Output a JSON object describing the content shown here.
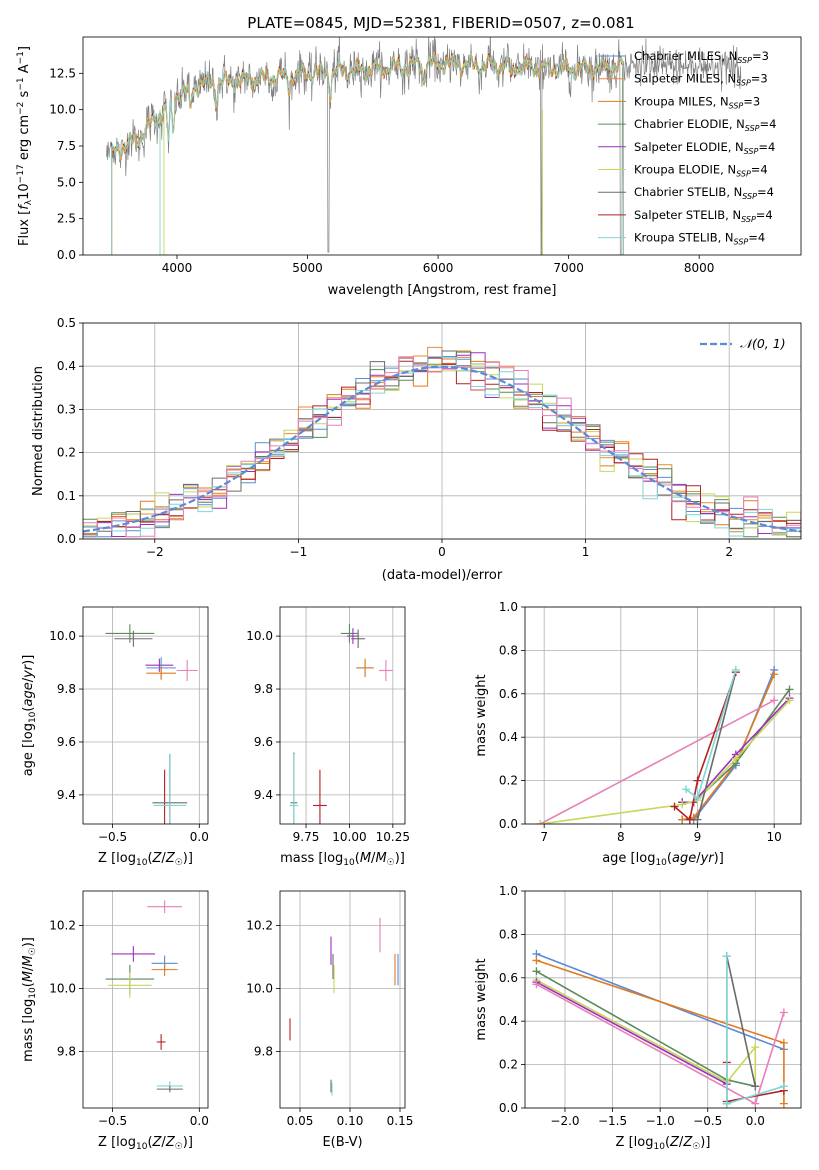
{
  "figure": {
    "title": "PLATE=0845, MJD=52381, FIBERID=0507, z=0.081"
  },
  "colors": {
    "Chabrier MILES": "#5b8bd8",
    "Salpeter MILES": "#e8893a",
    "Kroupa MILES": "#e07b1f",
    "Chabrier ELODIE": "#5a8a5a",
    "Salpeter ELODIE": "#9b30c0",
    "Kroupa ELODIE": "#c8d65a",
    "Chabrier STELIB": "#6b6b6b",
    "Salpeter STELIB": "#b22222",
    "Kroupa STELIB": "#7fd6d6",
    "pink": "#e87fb8",
    "normal": "#5b8bd8"
  },
  "chart_data": [
    {
      "id": "spectrum",
      "type": "line",
      "title": "PLATE=0845, MJD=52381, FIBERID=0507, z=0.081",
      "xlabel": "wavelength [Angstrom, rest frame]",
      "ylabel": "Flux [f_λ 10^-17 erg cm^-2 s^-1 A^-1]",
      "xlim": [
        3280,
        8780
      ],
      "ylim": [
        0,
        15
      ],
      "xticks": [
        4000,
        5000,
        6000,
        7000,
        8000
      ],
      "yticks": [
        0.0,
        2.5,
        5.0,
        7.5,
        10.0,
        12.5
      ],
      "legend": "top-right",
      "series_names": [
        "Chabrier MILES, N_SSP=3",
        "Salpeter MILES, N_SSP=3",
        "Kroupa MILES, N_SSP=3",
        "Chabrier ELODIE, N_SSP=4",
        "Salpeter ELODIE, N_SSP=4",
        "Kroupa ELODIE, N_SSP=4",
        "Chabrier STELIB, N_SSP=4",
        "Salpeter STELIB, N_SSP=4",
        "Kroupa STELIB, N_SSP=4"
      ],
      "continuum": [
        [
          3500,
          7.0
        ],
        [
          3700,
          8.0
        ],
        [
          3800,
          9.0
        ],
        [
          3900,
          10.0
        ],
        [
          4000,
          11.0
        ],
        [
          4200,
          11.8
        ],
        [
          4500,
          12.0
        ],
        [
          5000,
          12.5
        ],
        [
          5500,
          12.8
        ],
        [
          6000,
          13.2
        ],
        [
          6500,
          13.0
        ],
        [
          7000,
          12.8
        ],
        [
          7400,
          13.0
        ]
      ],
      "data_range": [
        3460,
        8320
      ],
      "model_range": [
        3500,
        7420
      ]
    },
    {
      "id": "residuals",
      "type": "histogram",
      "xlabel": "(data-model)/error",
      "ylabel": "Normed distribution",
      "xlim": [
        -2.5,
        2.5
      ],
      "ylim": [
        0,
        0.5
      ],
      "xticks": [
        -2,
        -1,
        0,
        1,
        2
      ],
      "xtick_labels": [
        "−2",
        "−1",
        "0",
        "1",
        "2"
      ],
      "yticks": [
        0.0,
        0.1,
        0.2,
        0.3,
        0.4,
        0.5
      ],
      "legend": "top-right",
      "normal_label": "𝒩(0, 1)",
      "bin_width": 0.1
    },
    {
      "id": "age_vs_Z",
      "type": "scatter",
      "xlabel": "Z [log10(Z/Z☉)]",
      "ylabel": "age [log10(age/yr)]",
      "xlim": [
        -0.67,
        0.05
      ],
      "ylim": [
        9.29,
        10.11
      ],
      "xticks": [
        -0.5,
        0.0
      ],
      "xtick_labels": [
        "−0.5",
        "0.0"
      ],
      "yticks": [
        9.4,
        9.6,
        9.8,
        10.0
      ],
      "points": [
        {
          "c": "#5a8a5a",
          "x": -0.4,
          "y": 10.01,
          "dx": 0.28,
          "dy": 0.07
        },
        {
          "c": "#6b6b6b",
          "x": -0.38,
          "y": 9.99,
          "dx": 0.22,
          "dy": 0.06
        },
        {
          "c": "#9b30c0",
          "x": -0.23,
          "y": 9.89,
          "dx": 0.16,
          "dy": 0.05
        },
        {
          "c": "#5b8bd8",
          "x": -0.22,
          "y": 9.88,
          "dx": 0.17,
          "dy": 0.08
        },
        {
          "c": "#e87fb8",
          "x": -0.07,
          "y": 9.87,
          "dx": 0.12,
          "dy": 0.08
        },
        {
          "c": "#e07b1f",
          "x": -0.22,
          "y": 9.86,
          "dx": 0.17,
          "dy": 0.05
        },
        {
          "c": "#b22222",
          "x": -0.2,
          "y": 9.36,
          "dx": 0.04,
          "dy": 0.27
        },
        {
          "c": "#6b6b6b",
          "x": -0.17,
          "y": 9.37,
          "dx": 0.2,
          "dy": 0.37
        },
        {
          "c": "#7fd6d6",
          "x": -0.17,
          "y": 9.36,
          "dx": 0.19,
          "dy": 0.39
        }
      ]
    },
    {
      "id": "age_vs_mass",
      "type": "scatter",
      "xlabel": "mass [log10(M/M☉)]",
      "ylabel": "",
      "xlim": [
        9.6,
        10.32
      ],
      "ylim": [
        9.29,
        10.11
      ],
      "xticks": [
        9.75,
        9.8,
        10.0,
        10.25
      ],
      "xtick_labels": [
        "9.75",
        "",
        "10.00",
        "10.25"
      ],
      "xticks_shown": [
        9.75,
        10.0,
        10.25
      ],
      "yticks": [
        9.4,
        9.6,
        9.8,
        10.0
      ],
      "points": [
        {
          "c": "#5a8a5a",
          "x": 10.0,
          "y": 10.01,
          "dx": 0.1,
          "dy": 0.07
        },
        {
          "c": "#9b30c0",
          "x": 10.02,
          "y": 10.0,
          "dx": 0.07,
          "dy": 0.06
        },
        {
          "c": "#6b6b6b",
          "x": 10.05,
          "y": 9.99,
          "dx": 0.08,
          "dy": 0.07
        },
        {
          "c": "#5b8bd8",
          "x": 10.09,
          "y": 9.88,
          "dx": 0.1,
          "dy": 0.06
        },
        {
          "c": "#e07b1f",
          "x": 10.09,
          "y": 9.88,
          "dx": 0.1,
          "dy": 0.07
        },
        {
          "c": "#e87fb8",
          "x": 10.21,
          "y": 9.87,
          "dx": 0.08,
          "dy": 0.08
        },
        {
          "c": "#6b6b6b",
          "x": 9.68,
          "y": 9.37,
          "dx": 0.04,
          "dy": 0.38
        },
        {
          "c": "#7fd6d6",
          "x": 9.68,
          "y": 9.36,
          "dx": 0.05,
          "dy": 0.39
        },
        {
          "c": "#b22222",
          "x": 9.83,
          "y": 9.36,
          "dx": 0.08,
          "dy": 0.27
        }
      ]
    },
    {
      "id": "weight_vs_age",
      "type": "line",
      "xlabel": "age [log10(age/yr)]",
      "ylabel": "mass weight",
      "xlim": [
        6.75,
        10.35
      ],
      "ylim": [
        0,
        1
      ],
      "xticks": [
        7,
        8,
        9,
        10
      ],
      "yticks": [
        0.0,
        0.2,
        0.4,
        0.6,
        0.8,
        1.0
      ],
      "series": [
        {
          "c": "#5b8bd8",
          "pts": [
            [
              8.8,
              0.02
            ],
            [
              8.95,
              0.02
            ],
            [
              9.5,
              0.27
            ],
            [
              10.0,
              0.71
            ]
          ]
        },
        {
          "c": "#e07b1f",
          "pts": [
            [
              8.8,
              0.02
            ],
            [
              8.95,
              0.03
            ],
            [
              9.5,
              0.28
            ],
            [
              10.0,
              0.69
            ]
          ]
        },
        {
          "c": "#e87fb8",
          "pts": [
            [
              6.95,
              0.0
            ],
            [
              10.0,
              0.57
            ]
          ]
        },
        {
          "c": "#5a8a5a",
          "pts": [
            [
              8.8,
              0.1
            ],
            [
              8.95,
              0.1
            ],
            [
              9.5,
              0.28
            ],
            [
              10.2,
              0.62
            ]
          ]
        },
        {
          "c": "#9b30c0",
          "pts": [
            [
              8.8,
              0.1
            ],
            [
              8.95,
              0.1
            ],
            [
              9.5,
              0.32
            ],
            [
              10.2,
              0.58
            ]
          ]
        },
        {
          "c": "#c8d65a",
          "pts": [
            [
              6.95,
              0.0
            ],
            [
              8.8,
              0.09
            ],
            [
              9.0,
              0.11
            ],
            [
              9.5,
              0.3
            ],
            [
              10.2,
              0.57
            ]
          ]
        },
        {
          "c": "#6b6b6b",
          "pts": [
            [
              8.9,
              0.02
            ],
            [
              9.0,
              0.02
            ],
            [
              9.5,
              0.7
            ]
          ]
        },
        {
          "c": "#b22222",
          "pts": [
            [
              8.7,
              0.08
            ],
            [
              8.9,
              0.02
            ],
            [
              9.0,
              0.2
            ],
            [
              9.5,
              0.7
            ]
          ]
        },
        {
          "c": "#7fd6d6",
          "pts": [
            [
              8.85,
              0.16
            ],
            [
              9.0,
              0.12
            ],
            [
              9.5,
              0.71
            ]
          ]
        }
      ]
    },
    {
      "id": "mass_vs_Z",
      "type": "scatter",
      "xlabel": "Z [log10(Z/Z☉)]",
      "ylabel": "mass [log10(M/M☉)]",
      "xlim": [
        -0.67,
        0.05
      ],
      "ylim": [
        9.62,
        10.31
      ],
      "xticks": [
        -0.5,
        0.0
      ],
      "xtick_labels": [
        "−0.5",
        "0.0"
      ],
      "yticks": [
        9.8,
        10.0,
        10.2
      ],
      "points": [
        {
          "c": "#e87fb8",
          "x": -0.2,
          "y": 10.26,
          "dx": 0.2,
          "dy": 0.04
        },
        {
          "c": "#9b30c0",
          "x": -0.38,
          "y": 10.11,
          "dx": 0.25,
          "dy": 0.05
        },
        {
          "c": "#5b8bd8",
          "x": -0.2,
          "y": 10.08,
          "dx": 0.15,
          "dy": 0.05
        },
        {
          "c": "#e07b1f",
          "x": -0.2,
          "y": 10.06,
          "dx": 0.15,
          "dy": 0.04
        },
        {
          "c": "#5a8a5a",
          "x": -0.4,
          "y": 10.03,
          "dx": 0.28,
          "dy": 0.09
        },
        {
          "c": "#c8d65a",
          "x": -0.4,
          "y": 10.01,
          "dx": 0.25,
          "dy": 0.08
        },
        {
          "c": "#b22222",
          "x": -0.22,
          "y": 9.83,
          "dx": 0.05,
          "dy": 0.05
        },
        {
          "c": "#7fd6d6",
          "x": -0.17,
          "y": 9.69,
          "dx": 0.15,
          "dy": 0.03
        },
        {
          "c": "#6b6b6b",
          "x": -0.17,
          "y": 9.68,
          "dx": 0.15,
          "dy": 0.02
        }
      ]
    },
    {
      "id": "mass_vs_EBV",
      "type": "scatter",
      "xlabel": "E(B-V)",
      "ylabel": "",
      "xlim": [
        0.03,
        0.155
      ],
      "ylim": [
        9.62,
        10.31
      ],
      "xticks": [
        0.05,
        0.1,
        0.15
      ],
      "xtick_labels": [
        "0.05",
        "0.10",
        "0.15"
      ],
      "yticks": [
        9.8,
        10.0,
        10.2
      ],
      "points": [
        {
          "c": "#e87fb8",
          "x": 0.13,
          "y": 10.17,
          "dy": 0.11
        },
        {
          "c": "#9b30c0",
          "x": 0.081,
          "y": 10.12,
          "dy": 0.09
        },
        {
          "c": "#6b6b6b",
          "x": 0.083,
          "y": 10.07,
          "dy": 0.08
        },
        {
          "c": "#c8d65a",
          "x": 0.084,
          "y": 10.03,
          "dy": 0.09
        },
        {
          "c": "#e07b1f",
          "x": 0.145,
          "y": 10.06,
          "dy": 0.1
        },
        {
          "c": "#5b8bd8",
          "x": 0.148,
          "y": 10.06,
          "dy": 0.1
        },
        {
          "c": "#b22222",
          "x": 0.04,
          "y": 9.87,
          "dy": 0.07
        },
        {
          "c": "#6b6b6b",
          "x": 0.081,
          "y": 9.69,
          "dy": 0.04
        },
        {
          "c": "#7fd6d6",
          "x": 0.082,
          "y": 9.68,
          "dy": 0.04
        }
      ]
    },
    {
      "id": "weight_vs_Z",
      "type": "line",
      "xlabel": "Z [log10(Z/Z☉)]",
      "ylabel": "mass weight",
      "xlim": [
        -2.42,
        0.48
      ],
      "ylim": [
        0,
        1
      ],
      "xticks": [
        -2.0,
        -1.5,
        -1.0,
        -0.5,
        0.0
      ],
      "xtick_labels": [
        "−2.0",
        "−1.5",
        "−1.0",
        "−0.5",
        "0.0"
      ],
      "yticks": [
        0.0,
        0.2,
        0.4,
        0.6,
        0.8,
        1.0
      ],
      "series": [
        {
          "c": "#5b8bd8",
          "pts": [
            [
              -2.3,
              0.71
            ],
            [
              0.3,
              0.27
            ]
          ]
        },
        {
          "c": "#e07b1f",
          "pts": [
            [
              -2.3,
              0.68
            ],
            [
              0.3,
              0.3
            ],
            [
              0.3,
              0.02
            ]
          ]
        },
        {
          "c": "#5a8a5a",
          "pts": [
            [
              -2.3,
              0.63
            ],
            [
              -0.3,
              0.13
            ],
            [
              0.0,
              0.1
            ]
          ]
        },
        {
          "c": "#c8d65a",
          "pts": [
            [
              -2.3,
              0.59
            ],
            [
              -0.3,
              0.12
            ],
            [
              0.0,
              0.28
            ],
            [
              0.0,
              0.1
            ]
          ]
        },
        {
          "c": "#9b30c0",
          "pts": [
            [
              -2.3,
              0.58
            ],
            [
              -0.3,
              0.11
            ]
          ]
        },
        {
          "c": "#e87fb8",
          "pts": [
            [
              -2.3,
              0.57
            ],
            [
              0.0,
              0.02
            ],
            [
              0.3,
              0.44
            ]
          ]
        },
        {
          "c": "#6b6b6b",
          "pts": [
            [
              -0.3,
              0.02
            ],
            [
              -0.3,
              0.7
            ],
            [
              0.0,
              0.1
            ]
          ]
        },
        {
          "c": "#b22222",
          "pts": [
            [
              -0.3,
              0.21
            ],
            [
              -0.3,
              0.03
            ],
            [
              0.3,
              0.08
            ]
          ]
        },
        {
          "c": "#7fd6d6",
          "pts": [
            [
              -0.3,
              0.7
            ],
            [
              -0.3,
              0.02
            ],
            [
              0.3,
              0.1
            ]
          ]
        }
      ]
    }
  ]
}
